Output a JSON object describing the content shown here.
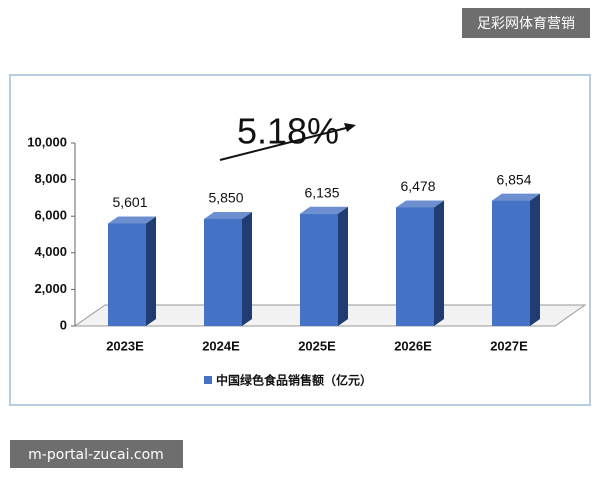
{
  "chart_data": {
    "type": "bar",
    "annotation": "5.18%",
    "categories": [
      "2023E",
      "2024E",
      "2025E",
      "2026E",
      "2027E"
    ],
    "series": [
      {
        "name": "中国绿色食品销售额（亿元）",
        "color": "#4472c4",
        "values": [
          5601,
          5850,
          6135,
          6478,
          6854
        ],
        "value_labels": [
          "5,601",
          "5,850",
          "6,135",
          "6,478",
          "6,854"
        ]
      }
    ],
    "ylim": [
      0,
      10000
    ],
    "yticks": [
      0,
      {
        "value": 2000,
        "label": "2,000"
      },
      {
        "value": 4000,
        "label": "4,000"
      },
      {
        "value": 6000,
        "label": "6,000"
      },
      {
        "value": 8000,
        "label": "8,000"
      },
      {
        "value": 10000,
        "label": "10,000"
      }
    ],
    "legend": "bottom"
  },
  "overlay": {
    "brand": "足彩网体育营销",
    "url": "m-portal-zucai.com"
  }
}
